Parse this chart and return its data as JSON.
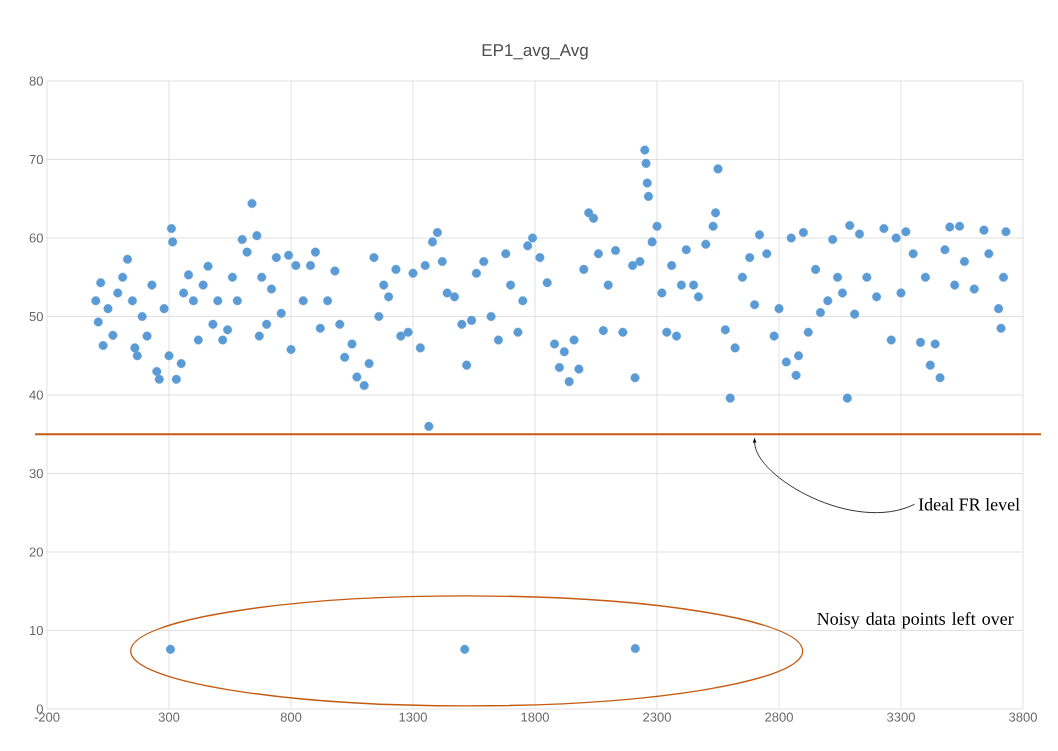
{
  "chart_data": {
    "type": "scatter",
    "title": "EP1_avg_Avg",
    "color": "#5b9bd5",
    "marker": "circle",
    "grid": true,
    "xlim": [
      -200,
      3800
    ],
    "ylim": [
      0,
      80
    ],
    "xticks": [
      -200,
      300,
      800,
      1300,
      1800,
      2300,
      2800,
      3300,
      3800
    ],
    "yticks": [
      0,
      10,
      20,
      30,
      40,
      50,
      60,
      70,
      80
    ],
    "x": [
      0,
      10,
      20,
      30,
      50,
      70,
      90,
      110,
      130,
      150,
      160,
      170,
      190,
      210,
      230,
      250,
      260,
      280,
      300,
      310,
      315,
      330,
      350,
      360,
      380,
      400,
      420,
      440,
      460,
      480,
      500,
      520,
      540,
      560,
      580,
      600,
      620,
      640,
      660,
      670,
      680,
      700,
      720,
      740,
      760,
      790,
      800,
      820,
      850,
      880,
      900,
      920,
      950,
      980,
      1000,
      1020,
      1050,
      1070,
      1100,
      1120,
      1140,
      1160,
      1180,
      1200,
      1230,
      1250,
      1280,
      1300,
      1330,
      1350,
      1365,
      1380,
      1400,
      1420,
      1440,
      1470,
      1500,
      1520,
      1540,
      1560,
      1590,
      1620,
      1650,
      1680,
      1700,
      1730,
      1750,
      1770,
      1790,
      1820,
      1850,
      1880,
      1900,
      1920,
      1940,
      1960,
      1980,
      2000,
      2020,
      2040,
      2060,
      2080,
      2100,
      2130,
      2160,
      2200,
      2210,
      2230,
      2250,
      2255,
      2260,
      2265,
      2280,
      2300,
      2320,
      2340,
      2360,
      2380,
      2400,
      2420,
      2450,
      2470,
      2500,
      2530,
      2540,
      2550,
      2580,
      2600,
      2620,
      2650,
      2680,
      2700,
      2720,
      2750,
      2780,
      2800,
      2830,
      2850,
      2870,
      2880,
      2900,
      2920,
      2950,
      2970,
      3000,
      3020,
      3040,
      3060,
      3080,
      3090,
      3110,
      3130,
      3160,
      3200,
      3230,
      3260,
      3280,
      3300,
      3320,
      3350,
      3380,
      3400,
      3420,
      3440,
      3460,
      3480,
      3500,
      3520,
      3540,
      3560,
      3600,
      3640,
      3660,
      3700,
      3710,
      3720,
      3730,
      306,
      1512,
      2211
    ],
    "values": [
      52,
      49.3,
      54.3,
      46.3,
      51,
      47.6,
      53,
      55,
      57.3,
      52,
      46,
      45,
      50,
      47.5,
      54,
      43,
      42,
      51,
      45,
      61.2,
      59.5,
      42,
      44,
      53,
      55.3,
      52,
      47,
      54,
      56.4,
      49,
      52,
      47,
      48.3,
      55,
      52,
      59.8,
      58.2,
      64.4,
      60.3,
      47.5,
      55,
      49,
      53.5,
      57.5,
      50.4,
      57.8,
      45.8,
      56.5,
      52,
      56.5,
      58.2,
      48.5,
      52,
      55.8,
      49,
      44.8,
      46.5,
      42.3,
      41.2,
      44,
      57.5,
      50,
      54,
      52.5,
      56,
      47.5,
      48,
      55.5,
      46,
      56.5,
      36,
      59.5,
      60.7,
      57,
      53,
      52.5,
      49,
      43.8,
      49.5,
      55.5,
      57,
      50,
      47,
      58,
      54,
      48,
      52,
      59,
      60,
      57.5,
      54.3,
      46.5,
      43.5,
      45.5,
      41.7,
      47,
      43.3,
      56,
      63.2,
      62.5,
      58,
      48.2,
      54,
      58.4,
      48,
      56.5,
      42.2,
      57,
      71.2,
      69.5,
      67,
      65.3,
      59.5,
      61.5,
      53,
      48,
      56.5,
      47.5,
      54,
      58.5,
      54,
      52.5,
      59.2,
      61.5,
      63.2,
      68.8,
      48.3,
      39.6,
      46,
      55,
      57.5,
      51.5,
      60.4,
      58,
      47.5,
      51,
      44.2,
      60,
      42.5,
      45,
      60.7,
      48,
      56,
      50.5,
      52,
      59.8,
      55,
      53,
      39.6,
      61.6,
      50.3,
      60.5,
      55,
      52.5,
      61.2,
      47,
      60,
      53,
      60.8,
      58,
      46.7,
      55,
      43.8,
      46.5,
      42.2,
      58.5,
      61.4,
      54,
      61.5,
      57,
      53.5,
      61,
      58,
      51,
      48.5,
      55,
      60.8,
      7.6,
      7.6,
      7.7
    ],
    "ref_lines": [
      {
        "axis": "y",
        "value": 35,
        "color": "#c55a11"
      }
    ],
    "annotations": [
      {
        "text": "Ideal FR level",
        "x": 2700,
        "y": 35
      },
      "Noisy data points left over"
    ]
  }
}
